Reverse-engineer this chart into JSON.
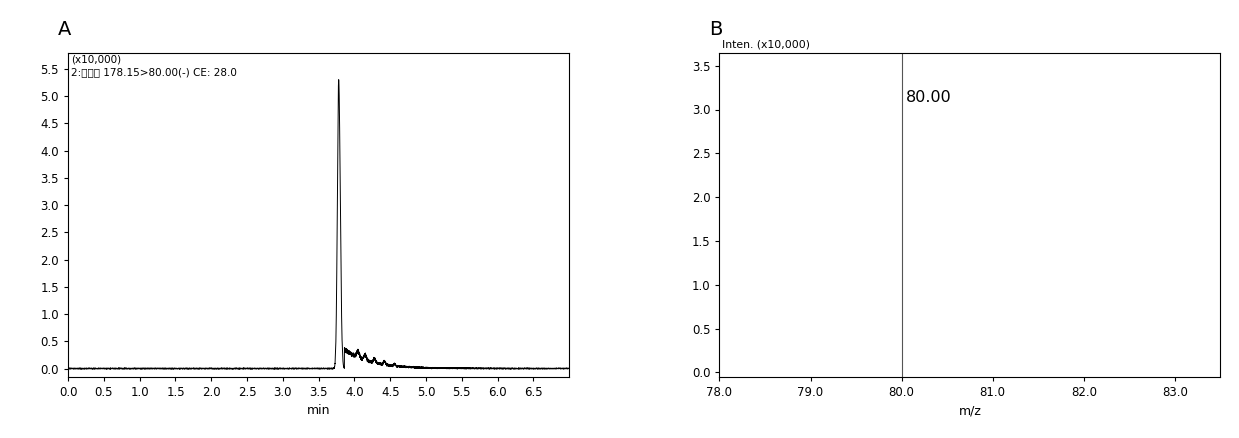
{
  "panel_A": {
    "label": "A",
    "annotation_line1": "(x10,000)",
    "annotation_line2": "2:甜蜜素 178.15>80.00(-) CE: 28.0",
    "xlabel": "min",
    "xlim": [
      0.0,
      7.0
    ],
    "ylim": [
      -0.15,
      5.8
    ],
    "yticks": [
      0.0,
      0.5,
      1.0,
      1.5,
      2.0,
      2.5,
      3.0,
      3.5,
      4.0,
      4.5,
      5.0,
      5.5
    ],
    "xticks": [
      0.0,
      0.5,
      1.0,
      1.5,
      2.0,
      2.5,
      3.0,
      3.5,
      4.0,
      4.5,
      5.0,
      5.5,
      6.0,
      6.5
    ],
    "peak_x": 3.78,
    "peak_height": 5.3,
    "line_color": "#000000"
  },
  "panel_B": {
    "label": "B",
    "ylabel_text": "Inten. (x10,000)",
    "xlabel": "m/z",
    "xlim": [
      78.0,
      83.5
    ],
    "ylim": [
      -0.05,
      3.65
    ],
    "yticks": [
      0.0,
      0.5,
      1.0,
      1.5,
      2.0,
      2.5,
      3.0,
      3.5
    ],
    "xticks": [
      78.0,
      79.0,
      80.0,
      81.0,
      82.0,
      83.0
    ],
    "vline_x": 80.0,
    "vline_label": "80.00",
    "line_color": "#555555"
  },
  "fig_bg": "#ffffff",
  "axes_bg": "#ffffff",
  "font_color": "#000000",
  "font_size": 9,
  "tick_font_size": 8.5,
  "label_fontsize": 14
}
